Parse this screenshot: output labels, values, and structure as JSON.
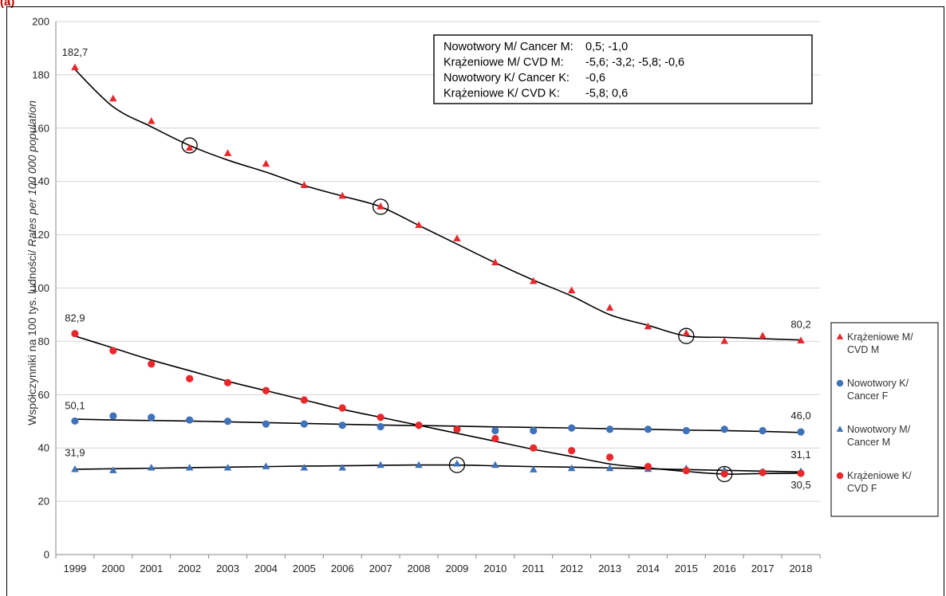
{
  "panel_label": "(a)",
  "chart_data": {
    "type": "scatter",
    "xlabel": "",
    "ylabel": "Współczynniki na 100 tys. ludności/ Rates per 100 000 population",
    "ylabel_pl": "Współczynniki na 100 tys. ludności/ ",
    "ylabel_en": "Rates per 100 000 population",
    "ylim": [
      0,
      200
    ],
    "yticks": [
      "0",
      "20",
      "40",
      "60",
      "80",
      "100",
      "120",
      "140",
      "160",
      "180",
      "200"
    ],
    "categories": [
      "1999",
      "2000",
      "2001",
      "2002",
      "2003",
      "2004",
      "2005",
      "2006",
      "2007",
      "2008",
      "2009",
      "2010",
      "2011",
      "2012",
      "2013",
      "2014",
      "2015",
      "2016",
      "2017",
      "2018"
    ],
    "grid": "horizontal",
    "legend_position": "right",
    "series": [
      {
        "name": "Krążeniowe M/ CVD M",
        "name_lines": [
          "Krążeniowe M/",
          "CVD M"
        ],
        "marker": "triangle",
        "color": "#e8282b",
        "values": [
          182.7,
          171,
          162.5,
          152.5,
          150.5,
          146.5,
          138.5,
          134.5,
          130.5,
          123.5,
          118.5,
          109.5,
          102.5,
          99,
          92.5,
          85.5,
          83,
          80,
          82,
          80.2
        ],
        "trend": [
          182,
          168,
          160.5,
          153.5,
          148,
          143.5,
          138.5,
          134.5,
          130.5,
          123.5,
          116.5,
          109.5,
          103,
          97,
          90,
          86,
          82,
          81.5,
          81,
          80.5
        ],
        "joinpoints": [
          "2002",
          "2007",
          "2015"
        ]
      },
      {
        "name": "Nowotwory K/ Cancer F",
        "name_lines": [
          "Nowotwory K/",
          "Cancer F"
        ],
        "marker": "circle",
        "color": "#3f72b8",
        "values": [
          50.1,
          52,
          51.5,
          50.5,
          50,
          49,
          49,
          48.5,
          48,
          48.5,
          47,
          46.5,
          46.5,
          47.5,
          47,
          47,
          46.5,
          47,
          46.5,
          46
        ],
        "trend": [
          50.8,
          50.5,
          50.3,
          50.1,
          49.8,
          49.5,
          49.2,
          48.9,
          48.6,
          48.4,
          48.2,
          47.9,
          47.7,
          47.5,
          47.2,
          47,
          46.7,
          46.5,
          46.2,
          45.8
        ],
        "joinpoints": []
      },
      {
        "name": "Nowotwory M/ Cancer M",
        "name_lines": [
          "Nowotwory M/",
          "Cancer M"
        ],
        "marker": "triangle",
        "color": "#3f72b8",
        "values": [
          31.9,
          31.5,
          32.5,
          32.5,
          32.5,
          33,
          32.5,
          32.5,
          33.5,
          33.5,
          34,
          33.5,
          31.8,
          32.3,
          32.3,
          32,
          32.2,
          31.6,
          31,
          31.1
        ],
        "trend": [
          32,
          32.2,
          32.4,
          32.6,
          32.8,
          33,
          33.2,
          33.3,
          33.5,
          33.6,
          33.6,
          33.3,
          33,
          32.8,
          32.5,
          32.2,
          31.9,
          31.6,
          31.3,
          31
        ],
        "joinpoints": [
          "2009"
        ]
      },
      {
        "name": "Krążeniowe K/ CVD F",
        "name_lines": [
          "Krążeniowe K/",
          "CVD F"
        ],
        "marker": "circle",
        "color": "#e8282b",
        "values": [
          82.9,
          76.5,
          71.5,
          66,
          64.5,
          61.5,
          58,
          55,
          51.5,
          48.5,
          47,
          43.5,
          40,
          39,
          36.5,
          33,
          31.5,
          30.3,
          30.8,
          30.5
        ],
        "trend": [
          82,
          77.5,
          73,
          69,
          65,
          61.5,
          58,
          54.5,
          51.5,
          48.5,
          45.5,
          42.5,
          39.5,
          36.8,
          34,
          32.5,
          31.2,
          30.2,
          30.4,
          30.5
        ],
        "joinpoints": [
          "2016"
        ]
      }
    ],
    "data_labels": [
      {
        "text": "182,7",
        "x": "1999",
        "y": 182.7,
        "dy": -15
      },
      {
        "text": "82,9",
        "x": "1999",
        "y": 82.9,
        "dy": -15
      },
      {
        "text": "50,1",
        "x": "1999",
        "y": 50.1,
        "dy": -15
      },
      {
        "text": "31,9",
        "x": "1999",
        "y": 31.9,
        "dy": -17
      },
      {
        "text": "80,2",
        "x": "2018",
        "y": 80.2,
        "dy": -16
      },
      {
        "text": "46,0",
        "x": "2018",
        "y": 46.0,
        "dy": -16
      },
      {
        "text": "31,1",
        "x": "2018",
        "y": 31.1,
        "dy": -17
      },
      {
        "text": "30,5",
        "x": "2018",
        "y": 30.5,
        "dy": 19
      }
    ],
    "info_box": [
      {
        "label": "Nowotwory M/ Cancer M:",
        "value": "0,5; -1,0"
      },
      {
        "label": "Krążeniowe M/ CVD M:",
        "value": "-5,6; -3,2; -5,8; -0,6"
      },
      {
        "label": "Nowotwory K/ Cancer K:",
        "value": "-0,6"
      },
      {
        "label": "Krążeniowe K/ CVD K:",
        "value": "-5,8; 0,6"
      }
    ]
  }
}
